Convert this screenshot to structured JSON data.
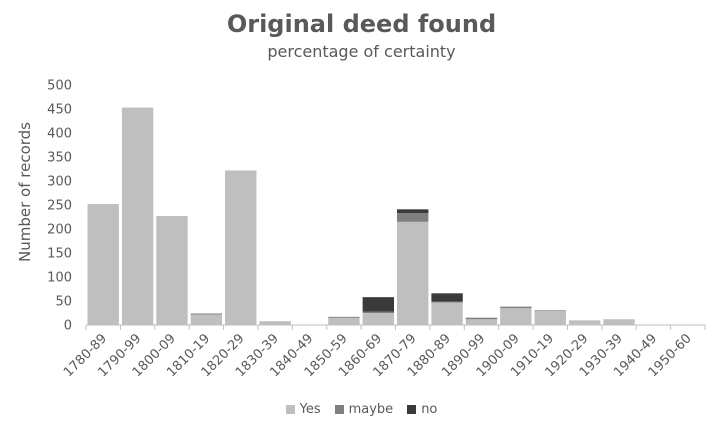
{
  "chart_data": {
    "type": "bar",
    "stacked": true,
    "title": "Original deed found",
    "subtitle": "percentage of certainty",
    "ylabel": "Number of records",
    "xlabel": "",
    "ylim": [
      0,
      500
    ],
    "yticks": [
      0,
      50,
      100,
      150,
      200,
      250,
      300,
      350,
      400,
      450,
      500
    ],
    "grid": false,
    "legend_position": "bottom",
    "categories": [
      "1780-89",
      "1790-99",
      "1800-09",
      "1810-19",
      "1820-29",
      "1830-39",
      "1840-49",
      "1850-59",
      "1860-69",
      "1870-79",
      "1880-89",
      "1890-99",
      "1900-09",
      "1910-19",
      "1920-29",
      "1930-39",
      "1940-49",
      "1950-60"
    ],
    "series": [
      {
        "name": "Yes",
        "color": "#bfbfbf",
        "values": [
          252,
          453,
          227,
          22,
          322,
          8,
          0,
          15,
          25,
          215,
          47,
          12,
          35,
          30,
          8,
          12,
          0,
          0
        ]
      },
      {
        "name": "maybe",
        "color": "#7f7f7f",
        "values": [
          0,
          0,
          0,
          2,
          0,
          0,
          0,
          2,
          3,
          18,
          2,
          2,
          2,
          1,
          1,
          0,
          0,
          0
        ]
      },
      {
        "name": "no",
        "color": "#3a3a3a",
        "values": [
          0,
          0,
          0,
          0,
          0,
          0,
          0,
          0,
          30,
          8,
          17,
          1,
          1,
          0,
          0,
          0,
          0,
          0
        ]
      }
    ]
  }
}
